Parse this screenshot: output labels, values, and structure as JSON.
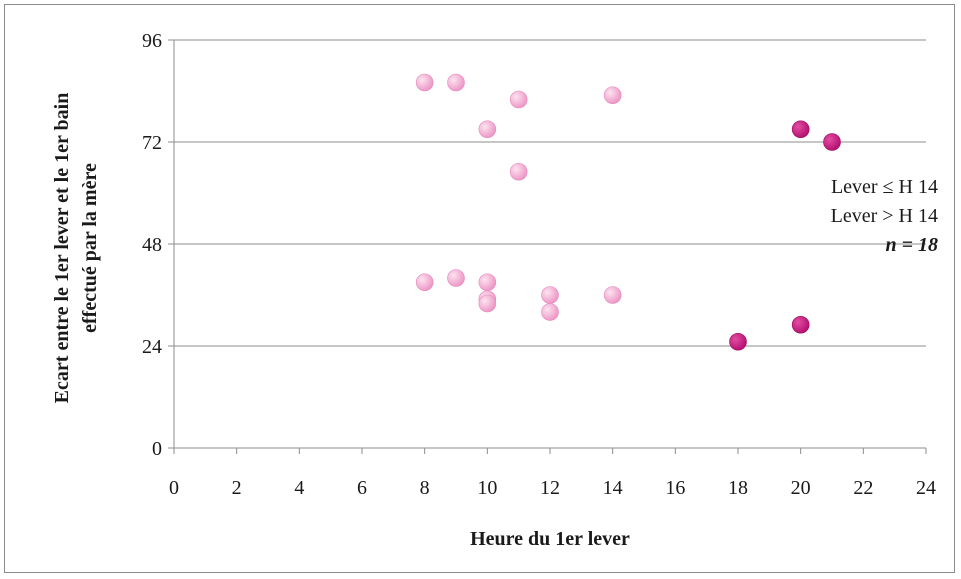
{
  "chart_data": {
    "type": "scatter",
    "title": "",
    "xlabel": "Heure du 1er lever",
    "ylabel_line1": "Ecart entre le 1er lever et le 1er bain",
    "ylabel_line2": "effectué par la mère",
    "xlim": [
      0,
      24
    ],
    "ylim": [
      0,
      96
    ],
    "xticks": [
      "0",
      "2",
      "4",
      "6",
      "8",
      "10",
      "12",
      "14",
      "16",
      "18",
      "20",
      "22",
      "24"
    ],
    "yticks": [
      "0",
      "24",
      "48",
      "72",
      "96"
    ],
    "grid": "horizontal",
    "legend_position": "right",
    "series": [
      {
        "name": "Lever ≤ H 14",
        "color": "#f2a7cf",
        "points": [
          {
            "x": 8,
            "y": 86
          },
          {
            "x": 9,
            "y": 86
          },
          {
            "x": 10,
            "y": 75
          },
          {
            "x": 11,
            "y": 82
          },
          {
            "x": 11,
            "y": 65
          },
          {
            "x": 14,
            "y": 83
          },
          {
            "x": 8,
            "y": 39
          },
          {
            "x": 9,
            "y": 40
          },
          {
            "x": 10,
            "y": 39
          },
          {
            "x": 10,
            "y": 35
          },
          {
            "x": 10,
            "y": 34
          },
          {
            "x": 12,
            "y": 36
          },
          {
            "x": 12,
            "y": 32
          },
          {
            "x": 14,
            "y": 36
          }
        ]
      },
      {
        "name": "Lever > H 14",
        "color": "#c8177f",
        "points": [
          {
            "x": 20,
            "y": 75
          },
          {
            "x": 21,
            "y": 72
          },
          {
            "x": 18,
            "y": 25
          },
          {
            "x": 20,
            "y": 29
          }
        ]
      }
    ],
    "legend_note": "n = 18"
  }
}
